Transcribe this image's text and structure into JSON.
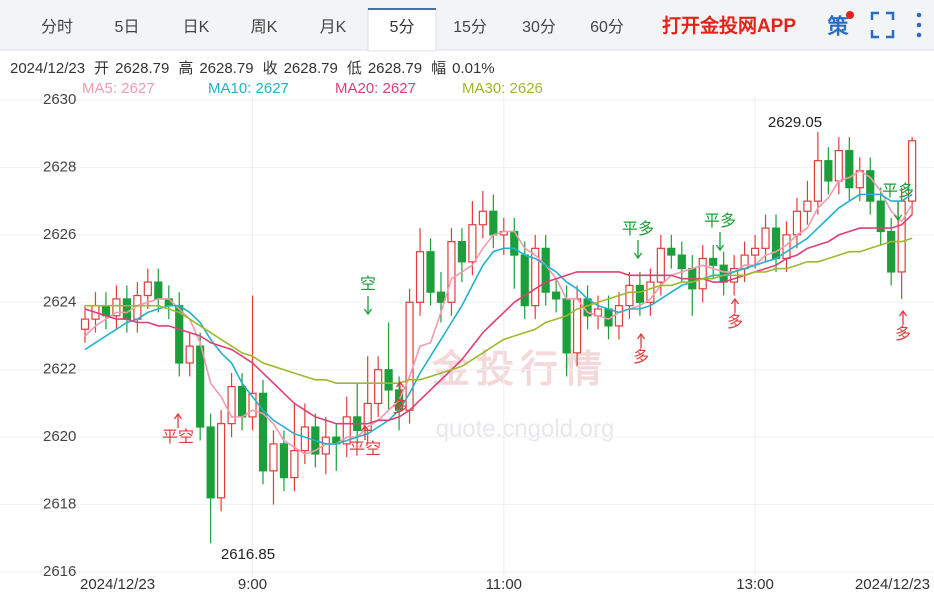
{
  "header": {
    "tabs": [
      "分时",
      "5日",
      "日K",
      "周K",
      "月K",
      "5分",
      "15分",
      "30分",
      "60分"
    ],
    "active_tab": 5,
    "app_link": "打开金投网APP",
    "strategy": "策"
  },
  "info": {
    "date": "2024/12/23",
    "items": [
      {
        "label": "开",
        "value": 2628.79
      },
      {
        "label": "高",
        "value": 2628.79
      },
      {
        "label": "收",
        "value": 2628.79
      },
      {
        "label": "低",
        "value": 2628.79
      },
      {
        "label": "幅",
        "value": "0.01%"
      }
    ]
  },
  "chart_data": {
    "type": "candlestick",
    "watermark": [
      "金投行情",
      "quote.cngold.org"
    ],
    "up_color": "#e23c3c",
    "down_color": "#1c9e3a",
    "grid": true,
    "ylim": [
      2616,
      2630
    ],
    "yticks": [
      2616,
      2618,
      2620,
      2622,
      2624,
      2626,
      2628,
      2630
    ],
    "categories": [
      "2024/12/23",
      null,
      null,
      null,
      null,
      null,
      null,
      null,
      null,
      null,
      null,
      null,
      null,
      null,
      null,
      null,
      "9:00",
      null,
      null,
      null,
      null,
      null,
      null,
      null,
      null,
      null,
      null,
      null,
      null,
      null,
      null,
      null,
      null,
      null,
      null,
      null,
      null,
      null,
      null,
      null,
      "11:00",
      null,
      null,
      null,
      null,
      null,
      null,
      null,
      null,
      null,
      null,
      null,
      null,
      null,
      null,
      null,
      null,
      null,
      null,
      null,
      null,
      null,
      null,
      null,
      "13:00",
      null,
      null,
      null,
      null,
      null,
      null,
      null,
      null,
      null,
      null,
      null,
      null,
      null,
      null,
      "2024/12/23"
    ],
    "open": [
      2623.2,
      2623.5,
      2623.9,
      2623.6,
      2624.1,
      2623.5,
      2624.2,
      2624.6,
      2624.1,
      2623.9,
      2622.2,
      2622.7,
      2620.3,
      2618.2,
      2620.4,
      2621.5,
      2620.6,
      2621.3,
      2619.0,
      2619.8,
      2618.8,
      2619.6,
      2620.3,
      2619.5,
      2620.0,
      2619.8,
      2620.6,
      2620.2,
      2621.0,
      2622.0,
      2621.4,
      2620.8,
      2624.0,
      2625.5,
      2624.3,
      2624.0,
      2625.8,
      2625.2,
      2626.3,
      2626.7,
      2626.0,
      2626.1,
      2625.4,
      2623.9,
      2625.6,
      2624.3,
      2624.1,
      2622.5,
      2624.1,
      2623.6,
      2623.8,
      2623.3,
      2623.9,
      2624.5,
      2624.0,
      2624.6,
      2625.6,
      2625.4,
      2625.0,
      2624.4,
      2625.3,
      2625.1,
      2624.6,
      2625.0,
      2625.4,
      2625.6,
      2626.2,
      2625.3,
      2626.0,
      2626.7,
      2627.0,
      2628.2,
      2627.6,
      2628.5,
      2627.4,
      2627.9,
      2627.0,
      2626.1,
      2624.9,
      2627.0
    ],
    "high": [
      2623.9,
      2624.3,
      2624.3,
      2624.5,
      2624.5,
      2624.6,
      2625.0,
      2625.0,
      2624.5,
      2624.3,
      2623.1,
      2623.1,
      2620.7,
      2620.8,
      2621.9,
      2621.9,
      2624.2,
      2621.7,
      2620.2,
      2620.2,
      2621.0,
      2621.0,
      2620.7,
      2620.6,
      2620.4,
      2621.2,
      2621.6,
      2622.4,
      2622.4,
      2623.4,
      2621.8,
      2624.4,
      2626.2,
      2625.9,
      2624.9,
      2626.2,
      2626.2,
      2627.0,
      2627.3,
      2627.2,
      2626.5,
      2626.5,
      2625.8,
      2626.0,
      2626.0,
      2624.7,
      2624.5,
      2624.5,
      2624.5,
      2624.2,
      2624.2,
      2624.3,
      2624.9,
      2624.9,
      2625.0,
      2626.0,
      2626.0,
      2625.8,
      2625.4,
      2625.7,
      2625.7,
      2625.5,
      2625.4,
      2625.8,
      2626.0,
      2626.6,
      2626.6,
      2626.4,
      2627.1,
      2627.6,
      2629.05,
      2628.6,
      2628.9,
      2628.9,
      2628.3,
      2628.3,
      2627.4,
      2626.5,
      2627.4,
      2628.9
    ],
    "low": [
      2622.8,
      2623.1,
      2623.2,
      2623.2,
      2623.1,
      2623.1,
      2623.8,
      2623.7,
      2623.5,
      2621.8,
      2621.8,
      2619.9,
      2616.85,
      2617.8,
      2620.0,
      2620.2,
      2620.2,
      2618.6,
      2618.0,
      2618.4,
      2618.4,
      2619.2,
      2619.1,
      2618.9,
      2619.0,
      2619.4,
      2619.8,
      2619.8,
      2620.6,
      2620.8,
      2620.2,
      2620.4,
      2623.6,
      2623.9,
      2623.4,
      2623.6,
      2624.6,
      2624.8,
      2625.9,
      2625.6,
      2625.4,
      2624.4,
      2623.5,
      2623.5,
      2623.9,
      2623.7,
      2621.8,
      2622.1,
      2623.2,
      2623.2,
      2622.9,
      2622.9,
      2623.5,
      2623.6,
      2623.6,
      2624.2,
      2625.0,
      2624.6,
      2623.6,
      2624.0,
      2624.7,
      2624.2,
      2624.2,
      2624.6,
      2625.0,
      2625.2,
      2624.9,
      2624.9,
      2625.6,
      2626.3,
      2626.6,
      2627.2,
      2627.2,
      2627.0,
      2627.0,
      2626.6,
      2625.7,
      2624.5,
      2624.1,
      2626.6
    ],
    "close": [
      2623.5,
      2623.9,
      2623.6,
      2624.1,
      2623.5,
      2624.2,
      2624.6,
      2624.1,
      2623.9,
      2622.2,
      2622.7,
      2620.3,
      2618.2,
      2620.4,
      2621.5,
      2620.6,
      2621.3,
      2619.0,
      2619.8,
      2618.8,
      2619.6,
      2620.3,
      2619.5,
      2620.0,
      2619.8,
      2620.6,
      2620.2,
      2621.0,
      2622.0,
      2621.4,
      2620.8,
      2624.0,
      2625.5,
      2624.3,
      2624.0,
      2625.8,
      2625.2,
      2626.3,
      2626.7,
      2626.0,
      2626.1,
      2625.4,
      2623.9,
      2625.6,
      2624.3,
      2624.1,
      2622.5,
      2624.1,
      2623.6,
      2623.8,
      2623.3,
      2623.9,
      2624.5,
      2624.0,
      2624.6,
      2625.6,
      2625.4,
      2625.0,
      2624.4,
      2625.3,
      2625.1,
      2624.6,
      2625.0,
      2625.4,
      2625.6,
      2626.2,
      2625.3,
      2626.0,
      2626.7,
      2627.0,
      2628.2,
      2627.6,
      2628.5,
      2627.4,
      2627.9,
      2627.0,
      2626.1,
      2624.9,
      2627.0,
      2628.79
    ],
    "series": [
      {
        "name": "MA5: 2627",
        "color": "#f29ab0",
        "values": [
          2623.0,
          2623.3,
          2623.5,
          2623.7,
          2623.7,
          2623.9,
          2624.0,
          2624.1,
          2624.1,
          2623.8,
          2623.5,
          2622.8,
          2621.6,
          2621.2,
          2620.6,
          2620.6,
          2620.8,
          2620.7,
          2620.4,
          2619.9,
          2619.7,
          2619.5,
          2619.6,
          2619.8,
          2619.8,
          2620.0,
          2620.0,
          2620.3,
          2620.5,
          2620.8,
          2621.1,
          2621.8,
          2622.7,
          2622.8,
          2623.7,
          2624.7,
          2624.9,
          2625.1,
          2625.6,
          2626.0,
          2626.1,
          2626.1,
          2625.6,
          2625.4,
          2625.1,
          2624.7,
          2624.1,
          2624.1,
          2623.7,
          2623.6,
          2623.5,
          2623.7,
          2623.8,
          2623.9,
          2624.1,
          2624.5,
          2624.8,
          2624.9,
          2625.0,
          2625.1,
          2625.0,
          2624.9,
          2624.9,
          2625.1,
          2625.1,
          2625.4,
          2625.5,
          2625.7,
          2626.0,
          2626.2,
          2626.8,
          2627.1,
          2627.6,
          2627.7,
          2627.9,
          2627.7,
          2627.3,
          2626.7,
          2626.4,
          2626.9
        ]
      },
      {
        "name": "MA10: 2627",
        "color": "#22b2cc",
        "values": [
          2622.6,
          2622.8,
          2623.0,
          2623.2,
          2623.4,
          2623.5,
          2623.7,
          2623.8,
          2623.9,
          2623.9,
          2623.7,
          2623.4,
          2622.9,
          2622.5,
          2622.2,
          2621.6,
          2621.2,
          2620.8,
          2620.5,
          2620.3,
          2620.1,
          2620.0,
          2619.9,
          2619.8,
          2619.8,
          2619.9,
          2620.0,
          2620.1,
          2620.3,
          2620.5,
          2620.8,
          2621.3,
          2621.9,
          2622.4,
          2622.9,
          2623.4,
          2623.9,
          2624.5,
          2625.1,
          2625.5,
          2625.6,
          2625.6,
          2625.4,
          2625.3,
          2625.1,
          2624.9,
          2624.6,
          2624.4,
          2624.1,
          2623.9,
          2623.8,
          2623.7,
          2623.8,
          2623.8,
          2623.9,
          2624.1,
          2624.3,
          2624.5,
          2624.6,
          2624.7,
          2624.8,
          2624.8,
          2624.9,
          2625.0,
          2625.1,
          2625.2,
          2625.3,
          2625.5,
          2625.7,
          2625.9,
          2626.2,
          2626.5,
          2626.8,
          2627.0,
          2627.2,
          2627.2,
          2627.2,
          2627.0,
          2627.0,
          2627.2
        ]
      },
      {
        "name": "MA20: 2627",
        "color": "#df3f78",
        "values": [
          2623.8,
          2623.7,
          2623.6,
          2623.5,
          2623.5,
          2623.4,
          2623.4,
          2623.3,
          2623.3,
          2623.2,
          2623.1,
          2623.0,
          2622.8,
          2622.7,
          2622.6,
          2622.4,
          2622.2,
          2621.9,
          2621.6,
          2621.3,
          2621.0,
          2620.8,
          2620.6,
          2620.5,
          2620.4,
          2620.4,
          2620.4,
          2620.4,
          2620.5,
          2620.5,
          2620.6,
          2620.8,
          2621.1,
          2621.4,
          2621.7,
          2622.0,
          2622.3,
          2622.7,
          2623.1,
          2623.4,
          2623.7,
          2624.0,
          2624.2,
          2624.4,
          2624.6,
          2624.7,
          2624.8,
          2624.9,
          2624.9,
          2624.9,
          2624.9,
          2624.9,
          2624.8,
          2624.8,
          2624.8,
          2624.8,
          2624.8,
          2624.7,
          2624.7,
          2624.7,
          2624.6,
          2624.6,
          2624.7,
          2624.8,
          2624.9,
          2625.0,
          2625.1,
          2625.3,
          2625.4,
          2625.6,
          2625.7,
          2625.8,
          2626.0,
          2626.1,
          2626.2,
          2626.2,
          2626.2,
          2626.2,
          2626.3,
          2626.6
        ]
      },
      {
        "name": "MA30: 2626",
        "color": "#9fb92c",
        "values": [
          2623.9,
          2623.9,
          2623.9,
          2623.9,
          2623.9,
          2623.9,
          2623.9,
          2623.9,
          2623.8,
          2623.7,
          2623.5,
          2623.3,
          2623.1,
          2622.9,
          2622.7,
          2622.5,
          2622.4,
          2622.2,
          2622.1,
          2622.0,
          2621.9,
          2621.8,
          2621.7,
          2621.7,
          2621.6,
          2621.6,
          2621.6,
          2621.6,
          2621.6,
          2621.6,
          2621.6,
          2621.7,
          2621.7,
          2621.8,
          2621.9,
          2622.0,
          2622.1,
          2622.3,
          2622.5,
          2622.7,
          2622.9,
          2623.0,
          2623.1,
          2623.2,
          2623.4,
          2623.5,
          2623.6,
          2623.8,
          2623.9,
          2624.0,
          2624.1,
          2624.2,
          2624.3,
          2624.3,
          2624.4,
          2624.5,
          2624.5,
          2624.6,
          2624.6,
          2624.7,
          2624.7,
          2624.8,
          2624.8,
          2624.8,
          2624.9,
          2624.9,
          2625.0,
          2625.0,
          2625.1,
          2625.2,
          2625.2,
          2625.3,
          2625.4,
          2625.5,
          2625.5,
          2625.6,
          2625.7,
          2625.8,
          2625.8,
          2625.9
        ]
      }
    ],
    "signals": [
      {
        "text": "平空",
        "color": "#e23c3c"
      },
      {
        "text": "空",
        "color": "#1c9e3a"
      },
      {
        "text": "平空",
        "color": "#e23c3c"
      },
      {
        "text": "多",
        "color": "#e23c3c"
      },
      {
        "text": "平多",
        "color": "#1c9e3a"
      },
      {
        "text": "多",
        "color": "#e23c3c"
      },
      {
        "text": "平多",
        "color": "#1c9e3a"
      },
      {
        "text": "多",
        "color": "#e23c3c"
      },
      {
        "text": "平多",
        "color": "#1c9e3a"
      },
      {
        "text": "多",
        "color": "#e23c3c"
      }
    ]
  }
}
